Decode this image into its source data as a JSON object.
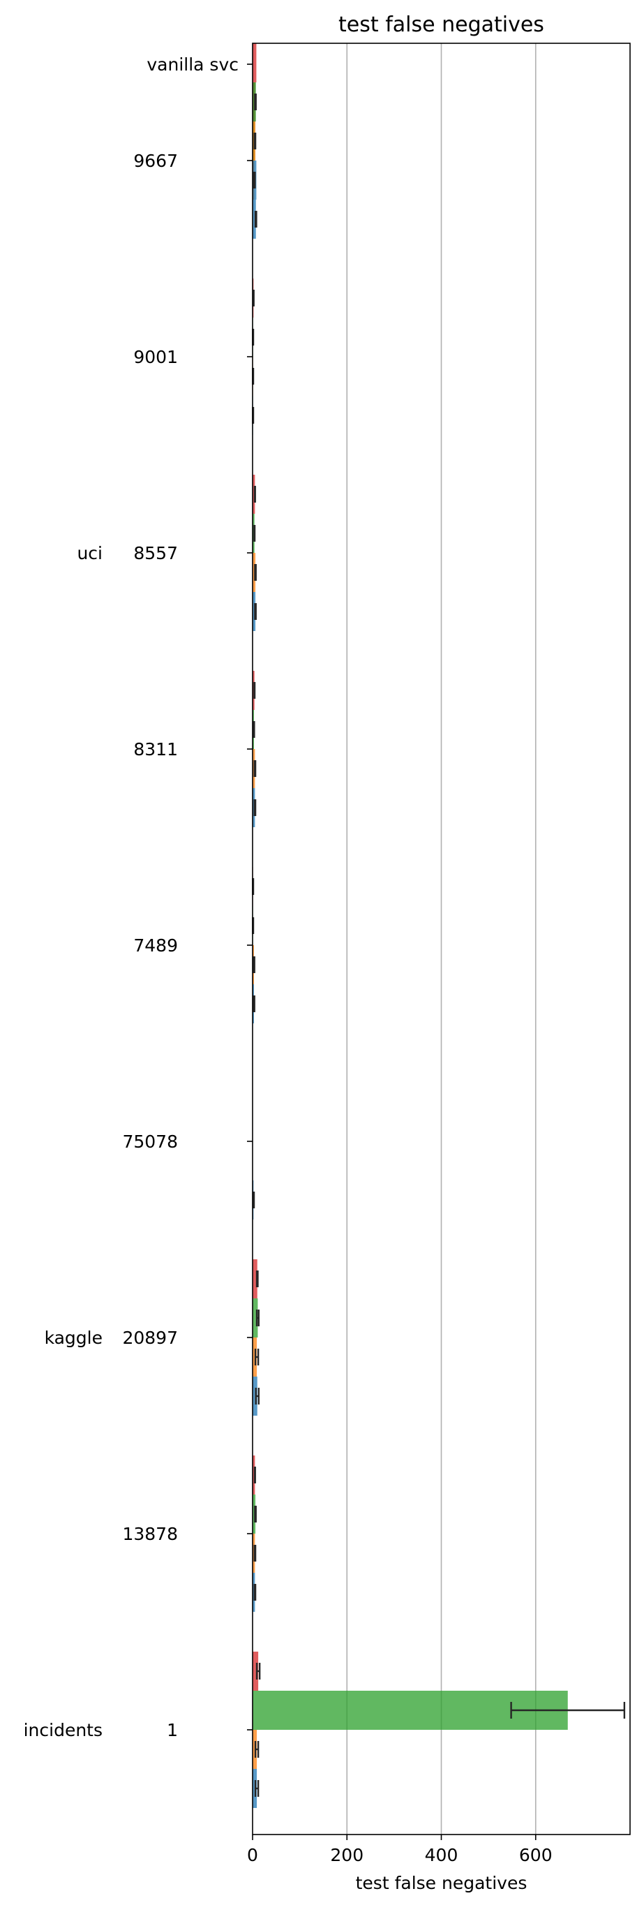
{
  "chart_data": {
    "type": "bar",
    "orientation": "horizontal",
    "title": "test false negatives",
    "xlabel": "test false negatives",
    "ylabel": "",
    "xlim": [
      0,
      800
    ],
    "x_ticks": [
      0,
      200,
      400,
      600
    ],
    "grid": "x",
    "legend": "none",
    "categories": [
      "vanilla svc",
      "9667",
      "9001",
      "8557",
      "8311",
      "7489",
      "75078",
      "20897",
      "13878",
      "1"
    ],
    "group_labels": [
      {
        "label": "uci",
        "category": "8557"
      },
      {
        "label": "kaggle",
        "category": "20897"
      },
      {
        "label": "incidents",
        "category": "1"
      }
    ],
    "series": [
      {
        "color": "#d62728",
        "values": [
          8,
          6,
          2,
          5,
          4,
          1,
          0,
          10,
          5,
          12
        ],
        "errors": [
          1,
          1,
          0.5,
          0.5,
          0.5,
          0.5,
          0,
          1,
          0.5,
          3
        ]
      },
      {
        "color": "#2ca02c",
        "values": [
          7,
          5,
          1,
          4,
          3,
          1,
          0,
          11,
          6,
          668
        ],
        "errors": [
          1,
          1,
          0.5,
          0.5,
          0.5,
          0.5,
          0,
          2,
          1,
          120
        ]
      },
      {
        "color": "#ff7f0e",
        "values": [
          6,
          4,
          1,
          6,
          5,
          3,
          0,
          9,
          5,
          9
        ],
        "errors": [
          1,
          1,
          0.5,
          1,
          1,
          1,
          0,
          3,
          1,
          3
        ]
      },
      {
        "color": "#1f77b4",
        "values": [
          8,
          7,
          1,
          6,
          5,
          3,
          2,
          10,
          5,
          9
        ],
        "errors": [
          2,
          1,
          0.5,
          1,
          1,
          1,
          1,
          3,
          1,
          3
        ]
      }
    ]
  }
}
